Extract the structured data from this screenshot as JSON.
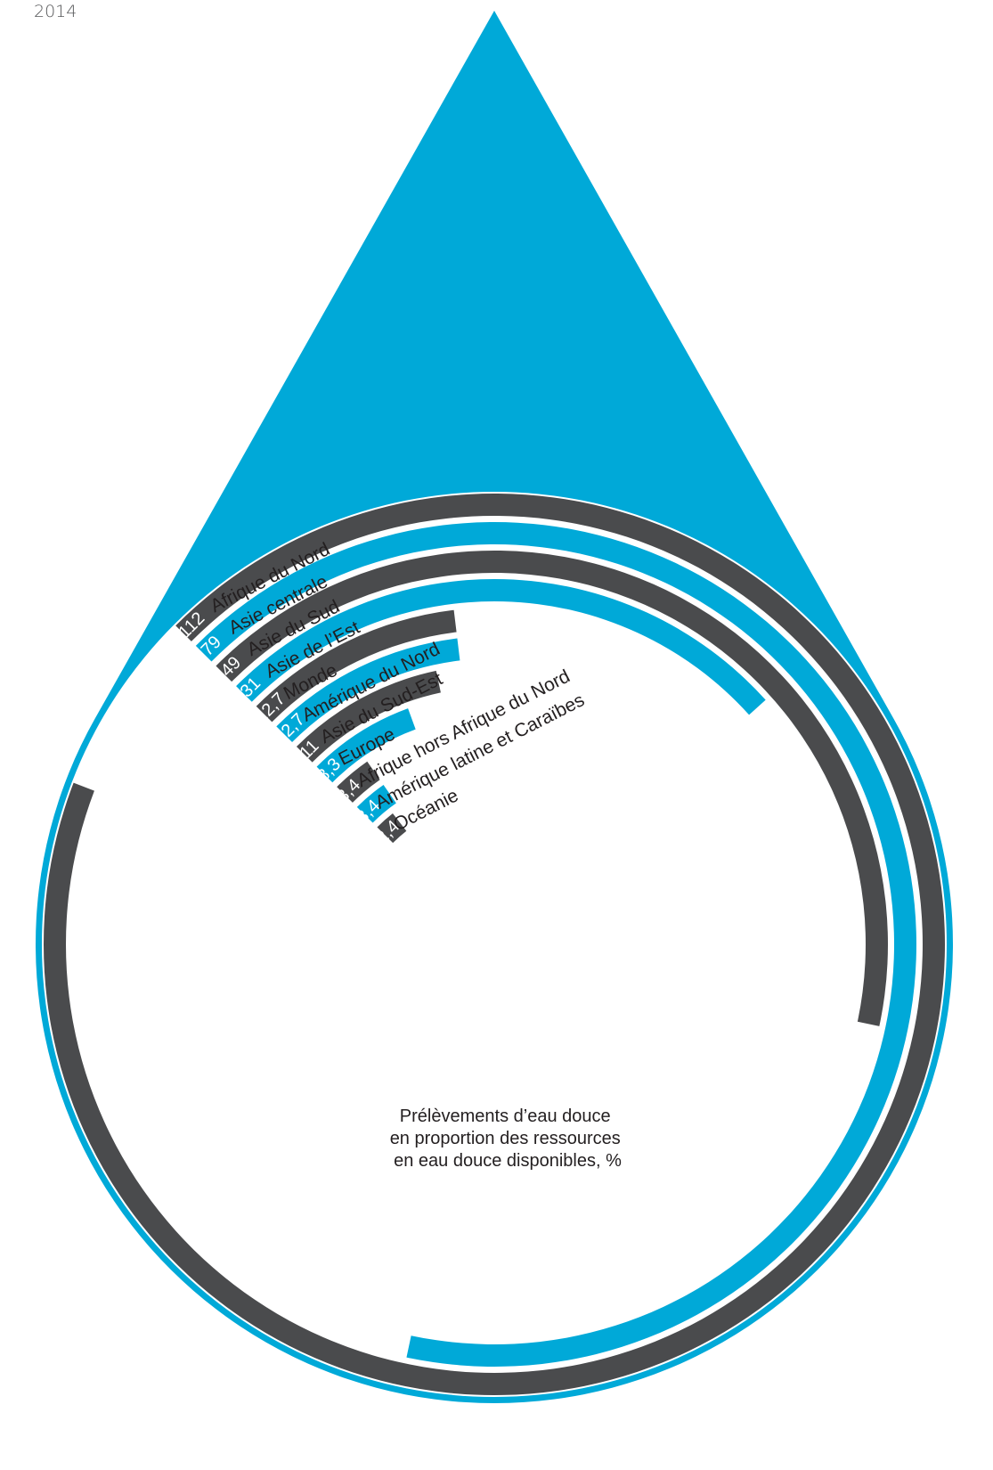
{
  "header": {
    "year": "2014"
  },
  "colors": {
    "blue": "#00a9d8",
    "dark": "#4a4b4d",
    "white": "#ffffff"
  },
  "chart_data": {
    "type": "radial-bar",
    "title_lines": [
      "Prélèvements d’eau douce",
      "en proportion des ressources",
      "en eau douce disponibles, %"
    ],
    "xlabel": "",
    "ylabel": "",
    "categories": [
      "Afrique du Nord",
      "Asie centrale",
      "Asie du Sud",
      "Asie de l’Est",
      "Monde",
      "Amérique du Nord",
      "Asie du Sud-Est",
      "Europe",
      "Afrique hors Afrique du Nord",
      "Amérique latine et Caraïbes",
      "Océanie"
    ],
    "values": [
      112,
      79,
      49,
      31,
      12.7,
      12.7,
      11,
      8.3,
      3.4,
      3.4,
      2.4
    ],
    "value_labels": [
      "112",
      "79",
      "49",
      "31",
      "12,7",
      "12,7",
      "11",
      "8,3",
      "3,4",
      "3,4",
      "2,4"
    ],
    "bar_colors": [
      "dark",
      "blue",
      "dark",
      "blue",
      "dark",
      "blue",
      "dark",
      "blue",
      "dark",
      "blue",
      "dark"
    ]
  }
}
